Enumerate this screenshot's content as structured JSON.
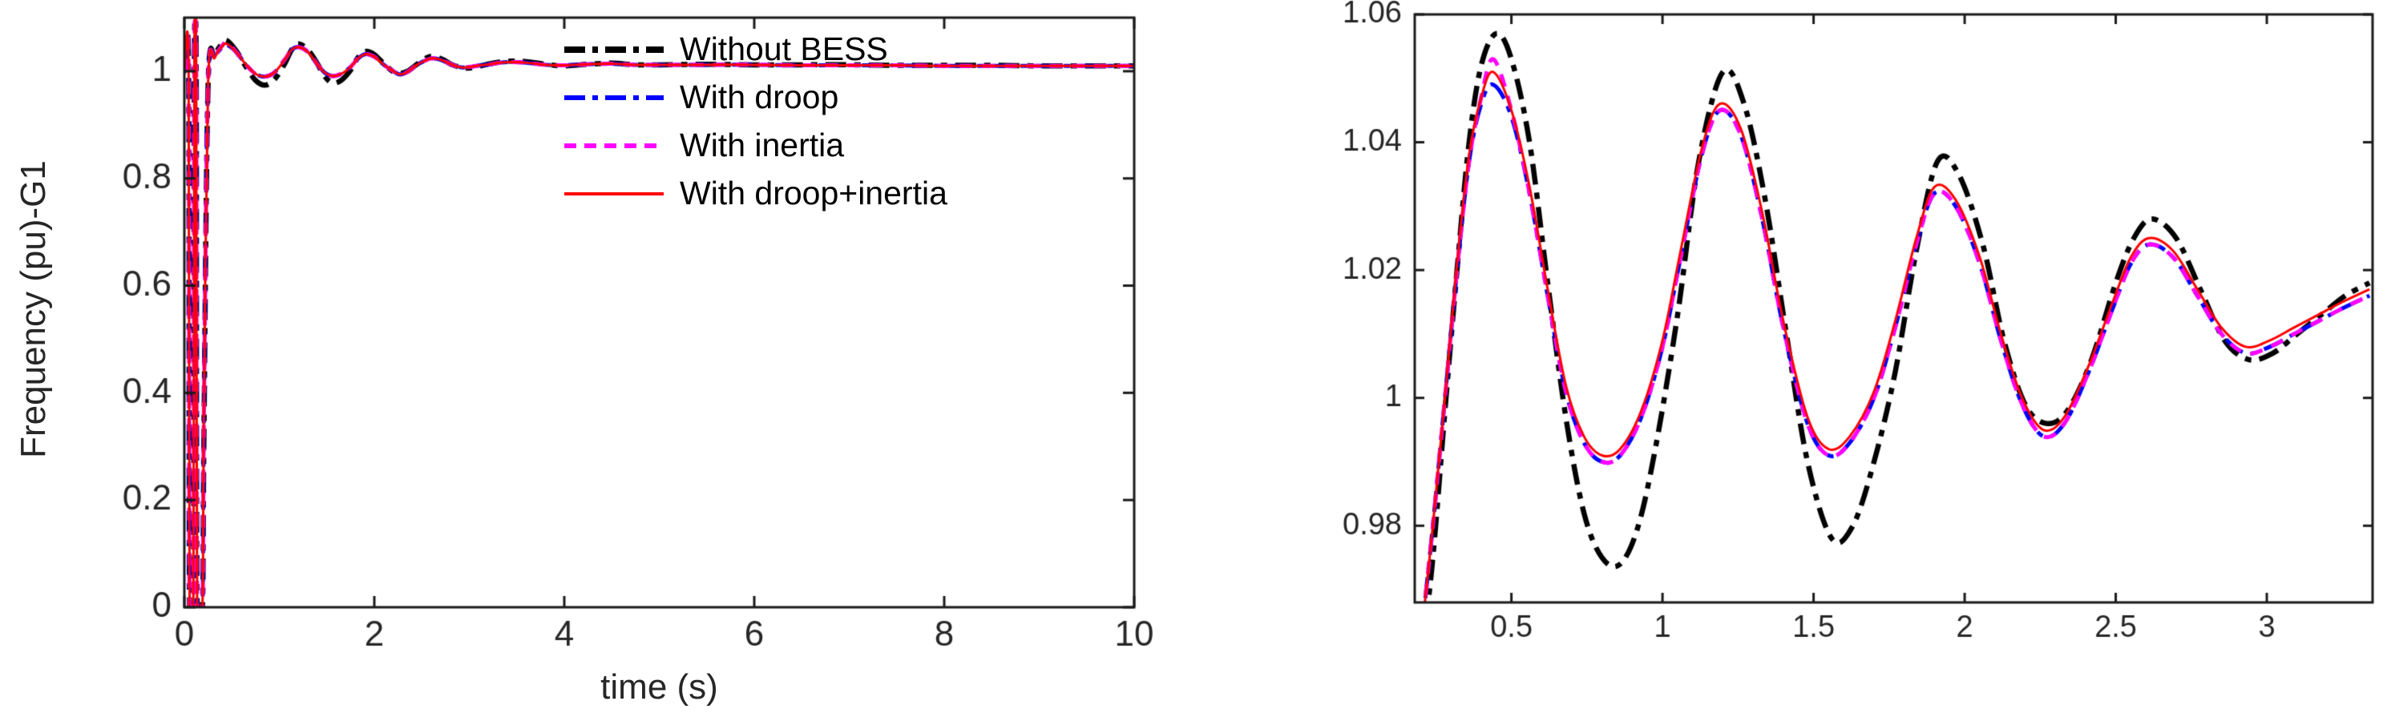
{
  "page": {
    "background": "#ffffff"
  },
  "chart_data": [
    {
      "type": "line",
      "title": "",
      "xlabel": "time (s)",
      "ylabel": "Frequency (pu)-G1",
      "xlim": [
        0,
        10
      ],
      "ylim": [
        0,
        1.1
      ],
      "grid": false,
      "axis_color": "#1a1a1a",
      "tick_label_color": "#262626",
      "xticks": {
        "values": [
          0,
          2,
          4,
          6,
          8,
          10
        ],
        "labels": [
          "0",
          "2",
          "4",
          "6",
          "8",
          "10"
        ]
      },
      "yticks": {
        "values": [
          0,
          0.2,
          0.4,
          0.6,
          0.8,
          1
        ],
        "labels": [
          "0",
          "0.2",
          "0.4",
          "0.6",
          "0.8",
          "1"
        ]
      },
      "legend": {
        "visible": true,
        "position": "upper-center-inside",
        "border": false
      },
      "series": [
        {
          "name": "Without BESS",
          "color": "#000000",
          "line_style": "dash-dot",
          "x": [
            0.0,
            0.045,
            0.055,
            0.095,
            0.105,
            0.125,
            0.135,
            0.19,
            0.205,
            0.25,
            0.32,
            0.4,
            0.45,
            0.55,
            0.65,
            0.75,
            0.85,
            0.95,
            1.05,
            1.13,
            1.2,
            1.3,
            1.4,
            1.48,
            1.56,
            1.65,
            1.75,
            1.83,
            1.91,
            2.0,
            2.1,
            2.2,
            2.27,
            2.35,
            2.45,
            2.55,
            2.62,
            2.72,
            2.82,
            2.92,
            3.0,
            3.12,
            3.22,
            3.32,
            3.45,
            3.6,
            3.8,
            4.0,
            4.25,
            4.5,
            4.75,
            5.0,
            5.5,
            6.0,
            6.5,
            7.0,
            7.5,
            8.0,
            8.5,
            9.0,
            9.5,
            10.0
          ],
          "y": [
            1.0,
            1.0,
            0.0,
            0.0,
            1.0,
            1.0,
            0.0,
            0.0,
            0.3,
            0.975,
            1.028,
            1.052,
            1.057,
            1.037,
            1.008,
            0.983,
            0.974,
            0.985,
            1.012,
            1.04,
            1.051,
            1.04,
            1.014,
            0.99,
            0.978,
            0.983,
            1.002,
            1.026,
            1.037,
            1.031,
            1.014,
            0.999,
            0.996,
            1.0,
            1.013,
            1.025,
            1.028,
            1.022,
            1.012,
            1.007,
            1.006,
            1.01,
            1.014,
            1.017,
            1.019,
            1.018,
            1.013,
            1.01,
            1.013,
            1.015,
            1.012,
            1.012,
            1.013,
            1.012,
            1.012,
            1.012,
            1.011,
            1.011,
            1.011,
            1.01,
            1.01,
            1.01
          ]
        },
        {
          "name": "With droop",
          "color": "#0000ff",
          "line_style": "dash-dot",
          "x": [
            0.0,
            0.045,
            0.055,
            0.095,
            0.105,
            0.125,
            0.135,
            0.19,
            0.205,
            0.25,
            0.32,
            0.4,
            0.45,
            0.55,
            0.65,
            0.75,
            0.85,
            0.95,
            1.05,
            1.13,
            1.2,
            1.3,
            1.4,
            1.48,
            1.56,
            1.65,
            1.75,
            1.83,
            1.91,
            2.0,
            2.1,
            2.2,
            2.27,
            2.35,
            2.45,
            2.55,
            2.62,
            2.72,
            2.82,
            2.92,
            3.0,
            3.12,
            3.22,
            3.32,
            3.45,
            3.6,
            3.8,
            4.0,
            4.25,
            4.5,
            4.75,
            5.0,
            5.5,
            6.0,
            6.5,
            7.0,
            7.5,
            8.0,
            8.5,
            9.0,
            9.5,
            10.0
          ],
          "y": [
            1.0,
            1.0,
            0.0,
            0.0,
            1.0,
            1.0,
            0.0,
            0.0,
            0.35,
            0.978,
            1.025,
            1.045,
            1.049,
            1.035,
            1.012,
            0.995,
            0.99,
            0.998,
            1.02,
            1.04,
            1.045,
            1.036,
            1.013,
            0.997,
            0.991,
            0.995,
            1.008,
            1.024,
            1.032,
            1.027,
            1.012,
            1.0,
            0.994,
            0.999,
            1.012,
            1.021,
            1.024,
            1.02,
            1.012,
            1.007,
            1.008,
            1.011,
            1.013,
            1.016,
            1.017,
            1.016,
            1.012,
            1.011,
            1.013,
            1.014,
            1.012,
            1.012,
            1.012,
            1.012,
            1.011,
            1.011,
            1.011,
            1.01,
            1.01,
            1.01,
            1.01,
            1.01
          ]
        },
        {
          "name": "With inertia",
          "color": "#ff00ff",
          "line_style": "dashed",
          "x": [
            0.0,
            0.045,
            0.055,
            0.095,
            0.105,
            0.125,
            0.135,
            0.19,
            0.205,
            0.25,
            0.32,
            0.4,
            0.45,
            0.55,
            0.65,
            0.75,
            0.85,
            0.95,
            1.05,
            1.13,
            1.2,
            1.3,
            1.4,
            1.48,
            1.56,
            1.65,
            1.75,
            1.83,
            1.91,
            2.0,
            2.1,
            2.2,
            2.27,
            2.35,
            2.45,
            2.55,
            2.62,
            2.72,
            2.82,
            2.92,
            3.0,
            3.12,
            3.22,
            3.32,
            3.45,
            3.6,
            3.8,
            4.0,
            4.25,
            4.5,
            4.75,
            5.0,
            5.5,
            6.0,
            6.5,
            7.0,
            7.5,
            8.0,
            8.5,
            9.0,
            9.5,
            10.0
          ],
          "y": [
            1.0,
            1.0,
            0.0,
            0.0,
            1.0,
            1.0,
            0.0,
            0.0,
            0.35,
            0.978,
            1.025,
            1.048,
            1.053,
            1.035,
            1.012,
            0.995,
            0.99,
            0.998,
            1.02,
            1.04,
            1.045,
            1.036,
            1.013,
            0.997,
            0.991,
            0.995,
            1.008,
            1.024,
            1.032,
            1.027,
            1.012,
            1.0,
            0.994,
            0.999,
            1.012,
            1.021,
            1.024,
            1.02,
            1.012,
            1.007,
            1.008,
            1.011,
            1.013,
            1.016,
            1.017,
            1.016,
            1.012,
            1.011,
            1.013,
            1.014,
            1.012,
            1.012,
            1.012,
            1.012,
            1.011,
            1.011,
            1.011,
            1.01,
            1.01,
            1.01,
            1.01,
            1.01
          ]
        },
        {
          "name": "With droop+inertia",
          "color": "#ff0000",
          "line_style": "solid",
          "x": [
            0.0,
            0.045,
            0.055,
            0.095,
            0.105,
            0.125,
            0.135,
            0.19,
            0.205,
            0.25,
            0.32,
            0.4,
            0.45,
            0.55,
            0.65,
            0.75,
            0.85,
            0.95,
            1.05,
            1.13,
            1.2,
            1.3,
            1.4,
            1.48,
            1.56,
            1.65,
            1.75,
            1.83,
            1.91,
            2.0,
            2.1,
            2.2,
            2.27,
            2.35,
            2.45,
            2.55,
            2.62,
            2.72,
            2.82,
            2.92,
            3.0,
            3.12,
            3.22,
            3.32,
            3.45,
            3.6,
            3.8,
            4.0,
            4.25,
            4.5,
            4.75,
            5.0,
            5.5,
            6.0,
            6.5,
            7.0,
            7.5,
            8.0,
            8.5,
            9.0,
            9.5,
            10.0
          ],
          "y": [
            1.0,
            1.0,
            0.0,
            0.0,
            1.0,
            1.0,
            0.0,
            0.0,
            0.35,
            0.978,
            1.025,
            1.047,
            1.051,
            1.035,
            1.012,
            0.995,
            0.99,
            0.998,
            1.02,
            1.04,
            1.045,
            1.036,
            1.013,
            0.997,
            0.991,
            0.995,
            1.008,
            1.024,
            1.032,
            1.027,
            1.012,
            1.0,
            0.994,
            0.999,
            1.012,
            1.021,
            1.024,
            1.02,
            1.012,
            1.007,
            1.008,
            1.011,
            1.013,
            1.016,
            1.017,
            1.016,
            1.012,
            1.011,
            1.013,
            1.014,
            1.012,
            1.012,
            1.012,
            1.012,
            1.011,
            1.011,
            1.011,
            1.01,
            1.01,
            1.01,
            1.01,
            1.01
          ]
        }
      ]
    },
    {
      "type": "line",
      "title": "",
      "xlabel": "",
      "ylabel": "",
      "xlim": [
        0.18,
        3.35
      ],
      "ylim": [
        0.968,
        1.06
      ],
      "grid": false,
      "axis_color": "#1a1a1a",
      "tick_label_color": "#262626",
      "xticks": {
        "values": [
          0.5,
          1,
          1.5,
          2,
          2.5,
          3
        ],
        "labels": [
          "0.5",
          "1",
          "1.5",
          "2",
          "2.5",
          "3"
        ]
      },
      "yticks": {
        "values": [
          0.98,
          1,
          1.02,
          1.04,
          1.06
        ],
        "labels": [
          "0.98",
          "1",
          "1.02",
          "1.04",
          "1.06"
        ]
      },
      "legend": {
        "visible": false
      },
      "series": [
        {
          "name": "Without BESS",
          "color": "#000000",
          "line_style": "dash-dot",
          "x": [
            0.2,
            0.24,
            0.28,
            0.32,
            0.36,
            0.4,
            0.45,
            0.5,
            0.56,
            0.62,
            0.68,
            0.74,
            0.8,
            0.86,
            0.92,
            0.98,
            1.05,
            1.12,
            1.2,
            1.27,
            1.34,
            1.41,
            1.48,
            1.56,
            1.63,
            1.7,
            1.77,
            1.84,
            1.91,
            1.98,
            2.06,
            2.13,
            2.2,
            2.27,
            2.34,
            2.42,
            2.5,
            2.56,
            2.62,
            2.7,
            2.78,
            2.86,
            2.94,
            3.02,
            3.1,
            3.18,
            3.26,
            3.34
          ],
          "y": [
            0.958,
            0.975,
            0.998,
            1.02,
            1.04,
            1.052,
            1.057,
            1.053,
            1.04,
            1.018,
            0.997,
            0.982,
            0.975,
            0.974,
            0.98,
            0.993,
            1.013,
            1.037,
            1.051,
            1.046,
            1.031,
            1.01,
            0.99,
            0.978,
            0.98,
            0.99,
            1.004,
            1.023,
            1.037,
            1.035,
            1.024,
            1.009,
            0.999,
            0.996,
            0.998,
            1.006,
            1.018,
            1.025,
            1.028,
            1.025,
            1.017,
            1.009,
            1.006,
            1.007,
            1.01,
            1.013,
            1.016,
            1.018
          ]
        },
        {
          "name": "With droop",
          "color": "#0000ff",
          "line_style": "dash-dot",
          "x": [
            0.2,
            0.24,
            0.28,
            0.32,
            0.36,
            0.4,
            0.44,
            0.5,
            0.56,
            0.62,
            0.68,
            0.74,
            0.8,
            0.86,
            0.93,
            1.0,
            1.06,
            1.13,
            1.19,
            1.26,
            1.33,
            1.4,
            1.48,
            1.55,
            1.62,
            1.7,
            1.77,
            1.84,
            1.9,
            1.97,
            2.05,
            2.12,
            2.19,
            2.26,
            2.33,
            2.41,
            2.49,
            2.55,
            2.61,
            2.69,
            2.77,
            2.85,
            2.93,
            3.01,
            3.09,
            3.17,
            3.25,
            3.34
          ],
          "y": [
            0.962,
            0.98,
            1.0,
            1.02,
            1.037,
            1.046,
            1.049,
            1.044,
            1.032,
            1.016,
            1.001,
            0.993,
            0.99,
            0.991,
            0.997,
            1.008,
            1.022,
            1.038,
            1.045,
            1.041,
            1.028,
            1.011,
            0.996,
            0.991,
            0.993,
            1.0,
            1.011,
            1.024,
            1.032,
            1.03,
            1.021,
            1.009,
            0.999,
            0.994,
            0.996,
            1.004,
            1.014,
            1.021,
            1.024,
            1.022,
            1.016,
            1.01,
            1.007,
            1.008,
            1.01,
            1.012,
            1.014,
            1.016
          ]
        },
        {
          "name": "With inertia",
          "color": "#ff00ff",
          "line_style": "dashed",
          "x": [
            0.2,
            0.24,
            0.28,
            0.32,
            0.36,
            0.4,
            0.44,
            0.5,
            0.56,
            0.62,
            0.68,
            0.74,
            0.8,
            0.86,
            0.93,
            1.0,
            1.06,
            1.13,
            1.19,
            1.26,
            1.33,
            1.4,
            1.48,
            1.55,
            1.62,
            1.7,
            1.77,
            1.84,
            1.9,
            1.97,
            2.05,
            2.12,
            2.19,
            2.26,
            2.33,
            2.41,
            2.49,
            2.55,
            2.61,
            2.69,
            2.77,
            2.85,
            2.93,
            3.01,
            3.09,
            3.17,
            3.25,
            3.34
          ],
          "y": [
            0.962,
            0.98,
            1.0,
            1.02,
            1.037,
            1.047,
            1.053,
            1.045,
            1.032,
            1.016,
            1.001,
            0.993,
            0.99,
            0.991,
            0.997,
            1.008,
            1.022,
            1.038,
            1.045,
            1.041,
            1.028,
            1.011,
            0.996,
            0.991,
            0.993,
            1.0,
            1.011,
            1.024,
            1.032,
            1.03,
            1.021,
            1.009,
            0.999,
            0.994,
            0.996,
            1.004,
            1.014,
            1.021,
            1.024,
            1.022,
            1.016,
            1.01,
            1.007,
            1.008,
            1.01,
            1.012,
            1.014,
            1.016
          ]
        },
        {
          "name": "With droop+inertia",
          "color": "#ff0000",
          "line_style": "solid",
          "x": [
            0.2,
            0.24,
            0.28,
            0.32,
            0.36,
            0.4,
            0.44,
            0.5,
            0.56,
            0.62,
            0.68,
            0.74,
            0.8,
            0.86,
            0.93,
            1.0,
            1.06,
            1.13,
            1.19,
            1.26,
            1.33,
            1.4,
            1.48,
            1.55,
            1.62,
            1.7,
            1.77,
            1.84,
            1.9,
            1.97,
            2.05,
            2.12,
            2.19,
            2.26,
            2.33,
            2.41,
            2.49,
            2.55,
            2.61,
            2.69,
            2.77,
            2.85,
            2.93,
            3.01,
            3.09,
            3.17,
            3.25,
            3.34
          ],
          "y": [
            0.962,
            0.98,
            1.0,
            1.021,
            1.038,
            1.047,
            1.051,
            1.045,
            1.033,
            1.017,
            1.002,
            0.994,
            0.991,
            0.992,
            0.998,
            1.009,
            1.023,
            1.039,
            1.046,
            1.042,
            1.029,
            1.012,
            0.997,
            0.992,
            0.994,
            1.001,
            1.012,
            1.025,
            1.033,
            1.031,
            1.022,
            1.01,
            1.0,
            0.995,
            0.997,
            1.005,
            1.015,
            1.022,
            1.025,
            1.023,
            1.017,
            1.011,
            1.008,
            1.009,
            1.011,
            1.013,
            1.015,
            1.017
          ]
        }
      ]
    }
  ]
}
